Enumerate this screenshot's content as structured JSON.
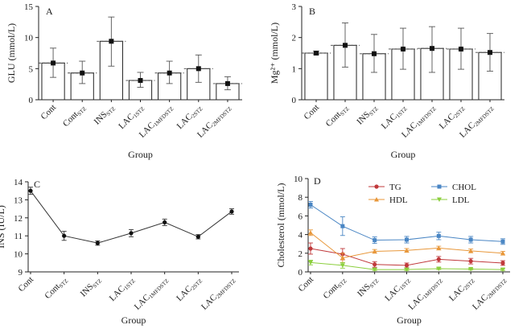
{
  "colors": {
    "axis": "#222222",
    "marker": "#111111",
    "TG": "#c0393b",
    "CHOL": "#4a86c4",
    "HDL": "#e8973a",
    "LDL": "#8ccf3e"
  },
  "chart_data": [
    {
      "id": "A",
      "type": "bar",
      "panel_label": "A",
      "ylabel": "GLU (mmol/L)",
      "xlabel": "Group",
      "ylim": [
        0,
        15
      ],
      "yticks": [
        0,
        5,
        10,
        15
      ],
      "categories": [
        {
          "base": "Cont",
          "sub": ""
        },
        {
          "base": "Cont",
          "sub": "STZ"
        },
        {
          "base": "INS",
          "sub": "STZ"
        },
        {
          "base": "LAC",
          "sub": "1STZ"
        },
        {
          "base": "LAC",
          "sub": "1MFDSTZ"
        },
        {
          "base": "LAC",
          "sub": "2STZ"
        },
        {
          "base": "LAC",
          "sub": "2MFDSTZ"
        }
      ],
      "values": [
        5.9,
        4.3,
        9.4,
        3.1,
        4.3,
        5.0,
        2.6
      ],
      "error_low": [
        3.6,
        2.6,
        5.4,
        2.0,
        2.6,
        2.8,
        1.6
      ],
      "error_high": [
        8.3,
        6.2,
        13.3,
        4.4,
        6.2,
        7.2,
        3.7
      ]
    },
    {
      "id": "B",
      "type": "bar",
      "panel_label": "B",
      "ylabel": "Mg²⁺ (mmol/L)",
      "xlabel": "Group",
      "ylim": [
        0,
        3
      ],
      "yticks": [
        0,
        1,
        2,
        3
      ],
      "categories": [
        {
          "base": "Cont",
          "sub": ""
        },
        {
          "base": "Cont",
          "sub": "STZ"
        },
        {
          "base": "INS",
          "sub": "STZ"
        },
        {
          "base": "LAC",
          "sub": "1STZ"
        },
        {
          "base": "LAC",
          "sub": "1MFDSTZ"
        },
        {
          "base": "LAC",
          "sub": "2STZ"
        },
        {
          "base": "LAC",
          "sub": "2MFDSTZ"
        }
      ],
      "values": [
        1.5,
        1.75,
        1.48,
        1.63,
        1.65,
        1.63,
        1.52
      ],
      "error_low": [
        1.45,
        1.05,
        0.88,
        0.98,
        0.88,
        0.98,
        0.92
      ],
      "error_high": [
        1.56,
        2.47,
        2.1,
        2.3,
        2.35,
        2.3,
        2.13
      ]
    },
    {
      "id": "C",
      "type": "line",
      "panel_label": "C",
      "ylabel": "INS (IU/L)",
      "xlabel": "Group",
      "ylim": [
        9,
        14
      ],
      "yticks": [
        9,
        10,
        11,
        12,
        13,
        14
      ],
      "categories": [
        {
          "base": "Cont",
          "sub": ""
        },
        {
          "base": "Cont",
          "sub": "STZ"
        },
        {
          "base": "INS",
          "sub": "STZ"
        },
        {
          "base": "LAC",
          "sub": "1STZ"
        },
        {
          "base": "LAC",
          "sub": "1MFDSTZ"
        },
        {
          "base": "LAC",
          "sub": "2STZ"
        },
        {
          "base": "LAC",
          "sub": "2MFDSTZ"
        }
      ],
      "values": [
        13.5,
        11.0,
        10.6,
        11.15,
        11.75,
        10.95,
        12.35
      ],
      "error": [
        0.2,
        0.25,
        0.12,
        0.2,
        0.18,
        0.12,
        0.15
      ]
    },
    {
      "id": "D",
      "type": "line",
      "panel_label": "D",
      "ylabel": "Cholesterol (mmol/L)",
      "xlabel": "Group",
      "ylim": [
        0,
        10
      ],
      "yticks": [
        0,
        2,
        4,
        6,
        8,
        10
      ],
      "categories": [
        {
          "base": "Cont",
          "sub": ""
        },
        {
          "base": "Cont",
          "sub": "STZ"
        },
        {
          "base": "INS",
          "sub": "STZ"
        },
        {
          "base": "LAC",
          "sub": "1STZ"
        },
        {
          "base": "LAC",
          "sub": "1MFDSTZ"
        },
        {
          "base": "LAC",
          "sub": "2STZ"
        },
        {
          "base": "LAC",
          "sub": "2MFDSTZ"
        }
      ],
      "series": [
        {
          "name": "TG",
          "color_key": "TG",
          "marker": "circle",
          "values": [
            2.5,
            1.9,
            0.8,
            0.7,
            1.35,
            1.15,
            0.95
          ],
          "error": [
            0.6,
            0.6,
            0.3,
            0.25,
            0.3,
            0.3,
            0.25
          ]
        },
        {
          "name": "CHOL",
          "color_key": "CHOL",
          "marker": "square",
          "values": [
            7.2,
            4.9,
            3.4,
            3.45,
            3.85,
            3.45,
            3.25
          ],
          "error": [
            0.35,
            1.0,
            0.35,
            0.35,
            0.4,
            0.35,
            0.3
          ]
        },
        {
          "name": "HDL",
          "color_key": "HDL",
          "marker": "triangle",
          "values": [
            4.2,
            1.5,
            2.2,
            2.3,
            2.55,
            2.25,
            2.0
          ],
          "error": [
            0.3,
            0.5,
            0.2,
            0.2,
            0.2,
            0.2,
            0.2
          ]
        },
        {
          "name": "LDL",
          "color_key": "LDL",
          "marker": "triangle-down",
          "values": [
            1.0,
            0.7,
            0.25,
            0.25,
            0.35,
            0.3,
            0.25
          ],
          "error": [
            0.25,
            0.3,
            0.1,
            0.1,
            0.1,
            0.1,
            0.1
          ]
        }
      ],
      "legend": [
        "TG",
        "CHOL",
        "HDL",
        "LDL"
      ]
    }
  ]
}
